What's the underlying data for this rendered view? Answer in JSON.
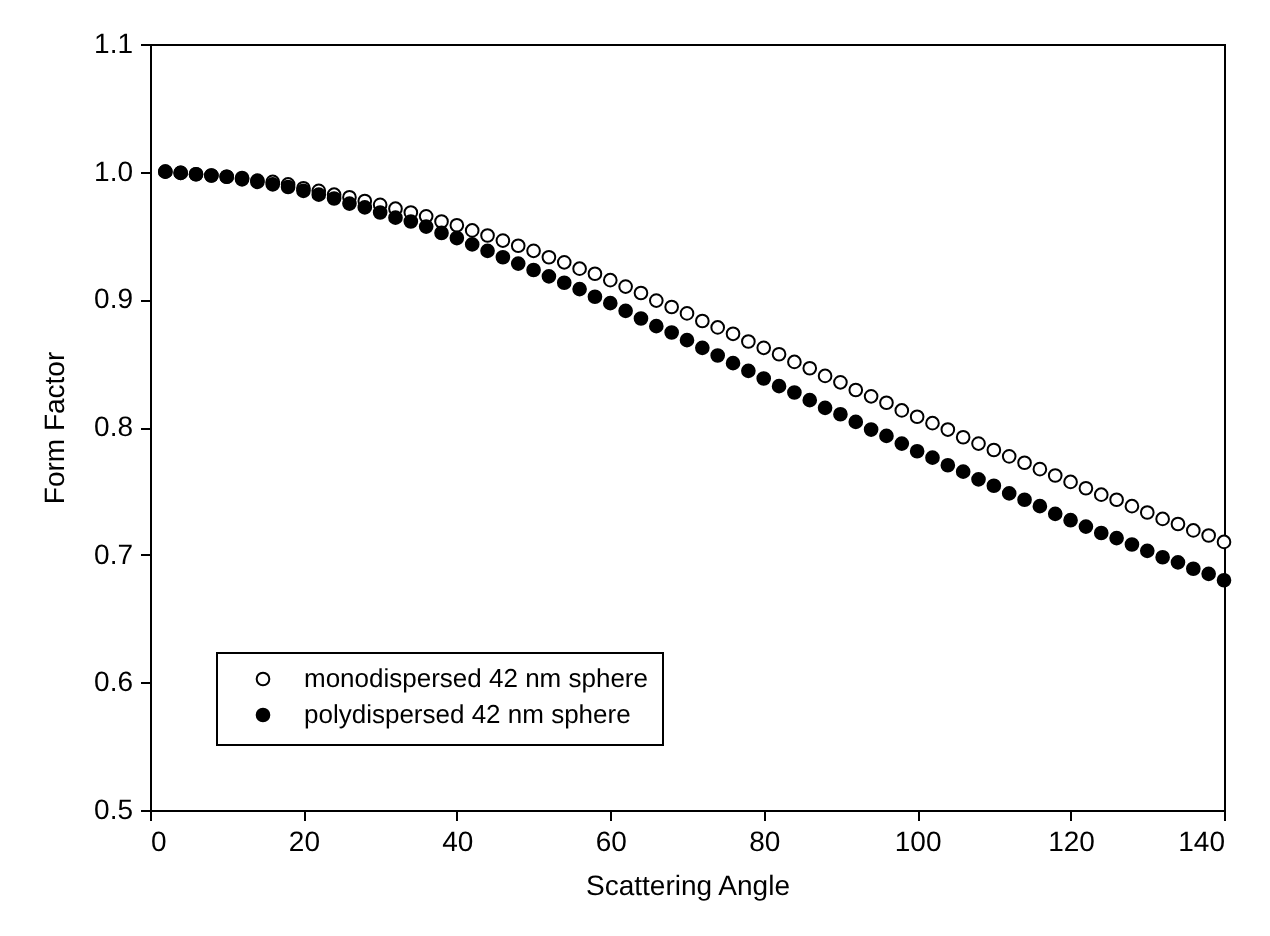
{
  "chart_data": {
    "type": "scatter",
    "xlabel": "Scattering Angle",
    "ylabel": "Form Factor",
    "x": [
      2,
      4,
      6,
      8,
      10,
      12,
      14,
      16,
      18,
      20,
      22,
      24,
      26,
      28,
      30,
      32,
      34,
      36,
      38,
      40,
      42,
      44,
      46,
      48,
      50,
      52,
      54,
      56,
      58,
      60,
      62,
      64,
      66,
      68,
      70,
      72,
      74,
      76,
      78,
      80,
      82,
      84,
      86,
      88,
      90,
      92,
      94,
      96,
      98,
      100,
      102,
      104,
      106,
      108,
      110,
      112,
      114,
      116,
      118,
      120,
      122,
      124,
      126,
      128,
      130,
      132,
      134,
      136,
      138,
      140
    ],
    "series": [
      {
        "name": "monodispersed 42 nm sphere",
        "color": "#ffffff",
        "values": [
          1.0,
          0.999,
          0.998,
          0.997,
          0.996,
          0.995,
          0.993,
          0.992,
          0.99,
          0.987,
          0.985,
          0.982,
          0.98,
          0.977,
          0.974,
          0.971,
          0.968,
          0.965,
          0.961,
          0.958,
          0.954,
          0.95,
          0.946,
          0.942,
          0.938,
          0.933,
          0.929,
          0.924,
          0.92,
          0.915,
          0.91,
          0.905,
          0.899,
          0.894,
          0.889,
          0.883,
          0.878,
          0.873,
          0.867,
          0.862,
          0.857,
          0.851,
          0.846,
          0.84,
          0.835,
          0.829,
          0.824,
          0.819,
          0.813,
          0.808,
          0.803,
          0.798,
          0.792,
          0.787,
          0.782,
          0.777,
          0.772,
          0.767,
          0.762,
          0.757,
          0.752,
          0.747,
          0.743,
          0.738,
          0.733,
          0.728,
          0.724,
          0.719,
          0.715,
          0.71
        ]
      },
      {
        "name": "polydispersed 42 nm sphere",
        "color": "#000000",
        "values": [
          1.0,
          0.999,
          0.998,
          0.997,
          0.996,
          0.994,
          0.992,
          0.99,
          0.988,
          0.985,
          0.982,
          0.979,
          0.975,
          0.972,
          0.968,
          0.964,
          0.961,
          0.957,
          0.952,
          0.948,
          0.943,
          0.938,
          0.933,
          0.928,
          0.923,
          0.918,
          0.913,
          0.908,
          0.902,
          0.897,
          0.891,
          0.885,
          0.879,
          0.874,
          0.868,
          0.862,
          0.856,
          0.85,
          0.844,
          0.838,
          0.832,
          0.827,
          0.821,
          0.815,
          0.81,
          0.804,
          0.798,
          0.793,
          0.787,
          0.781,
          0.776,
          0.77,
          0.765,
          0.759,
          0.754,
          0.748,
          0.743,
          0.738,
          0.732,
          0.727,
          0.722,
          0.717,
          0.713,
          0.708,
          0.703,
          0.698,
          0.694,
          0.689,
          0.685,
          0.68
        ]
      }
    ],
    "xlim": [
      0,
      140
    ],
    "xticks": [
      0,
      20,
      40,
      60,
      80,
      100,
      120,
      140
    ],
    "ylim": [
      0.5,
      1.1
    ],
    "yticks": [
      {
        "value": 0.5,
        "label": "0.5"
      },
      {
        "value": 0.6,
        "label": "0.6"
      },
      {
        "value": 0.7,
        "label": "0.7"
      },
      {
        "value": 0.8,
        "label": "0.8"
      },
      {
        "value": 0.9,
        "label": "0.9"
      },
      {
        "value": 1.0,
        "label": "1.0"
      },
      {
        "value": 1.1,
        "label": "1.1"
      }
    ],
    "grid": false,
    "legend": "bottom left",
    "marker": "circle"
  }
}
